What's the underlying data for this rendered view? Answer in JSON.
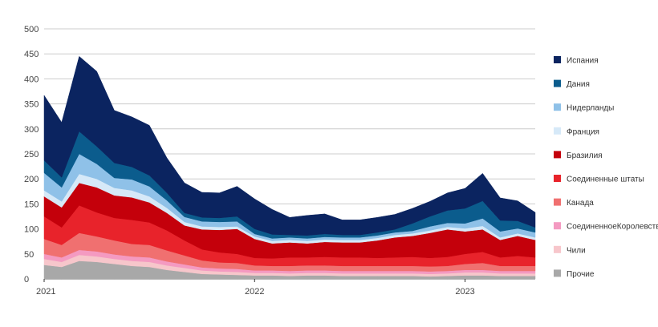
{
  "chart_data": {
    "type": "area",
    "stacked": true,
    "title": "",
    "xlabel": "",
    "ylabel": "",
    "ylim": [
      0,
      500
    ],
    "yticks": [
      "0",
      "50",
      "100",
      "150",
      "200",
      "250",
      "300",
      "350",
      "400",
      "450",
      "500"
    ],
    "xticks": [
      {
        "label": "2021",
        "index": 0
      },
      {
        "label": "2022",
        "index": 12
      },
      {
        "label": "2023",
        "index": 24
      }
    ],
    "grid": true,
    "legend_position": "right",
    "x": [
      "2021-01",
      "2021-02",
      "2021-03",
      "2021-04",
      "2021-05",
      "2021-06",
      "2021-07",
      "2021-08",
      "2021-09",
      "2021-10",
      "2021-11",
      "2021-12",
      "2022-01",
      "2022-02",
      "2022-03",
      "2022-04",
      "2022-05",
      "2022-06",
      "2022-07",
      "2022-08",
      "2022-09",
      "2022-10",
      "2022-11",
      "2022-12",
      "2023-01",
      "2023-02",
      "2023-03",
      "2023-04",
      "2023-05"
    ],
    "series": [
      {
        "name": "Прочие",
        "color": "#a8a8a8",
        "values": [
          28,
          24,
          36,
          34,
          30,
          26,
          24,
          18,
          14,
          10,
          9,
          8,
          7,
          7,
          6,
          7,
          7,
          6,
          6,
          6,
          6,
          6,
          5,
          6,
          7,
          7,
          6,
          6,
          6
        ]
      },
      {
        "name": "Чили",
        "color": "#f7c6cb",
        "values": [
          12,
          10,
          12,
          11,
          10,
          10,
          10,
          9,
          8,
          7,
          6,
          6,
          5,
          5,
          5,
          5,
          5,
          5,
          5,
          5,
          5,
          5,
          5,
          5,
          6,
          6,
          5,
          5,
          5
        ]
      },
      {
        "name": "СоединенноеКоролевство",
        "color": "#f49ac1",
        "values": [
          10,
          9,
          10,
          10,
          9,
          9,
          9,
          8,
          7,
          6,
          6,
          6,
          5,
          5,
          5,
          5,
          5,
          5,
          5,
          5,
          5,
          5,
          5,
          5,
          5,
          5,
          5,
          5,
          5
        ]
      },
      {
        "name": "Канада",
        "color": "#f07070",
        "values": [
          30,
          25,
          34,
          30,
          28,
          25,
          25,
          22,
          18,
          14,
          12,
          12,
          10,
          9,
          10,
          10,
          10,
          10,
          10,
          10,
          10,
          10,
          10,
          10,
          12,
          14,
          10,
          10,
          10
        ]
      },
      {
        "name": "Соединенные штаты",
        "color": "#e8232b",
        "values": [
          45,
          35,
          55,
          48,
          45,
          48,
          45,
          40,
          30,
          22,
          20,
          18,
          15,
          15,
          17,
          16,
          17,
          17,
          17,
          16,
          17,
          18,
          17,
          18,
          20,
          22,
          17,
          20,
          17
        ]
      },
      {
        "name": "Бразилия",
        "color": "#c4000b",
        "values": [
          40,
          40,
          45,
          50,
          45,
          45,
          40,
          35,
          30,
          40,
          45,
          50,
          38,
          30,
          30,
          28,
          30,
          30,
          30,
          35,
          40,
          42,
          50,
          55,
          45,
          45,
          35,
          40,
          35
        ]
      },
      {
        "name": "Франция",
        "color": "#d6e9f8",
        "values": [
          12,
          12,
          18,
          17,
          15,
          14,
          12,
          10,
          7,
          6,
          6,
          5,
          5,
          5,
          5,
          5,
          5,
          5,
          5,
          5,
          5,
          5,
          5,
          5,
          6,
          7,
          5,
          5,
          5
        ]
      },
      {
        "name": "Нидерланды",
        "color": "#8fc1e8",
        "values": [
          35,
          28,
          40,
          30,
          20,
          22,
          20,
          15,
          10,
          10,
          10,
          10,
          5,
          5,
          5,
          5,
          5,
          5,
          5,
          5,
          5,
          5,
          8,
          8,
          10,
          15,
          12,
          10,
          10
        ]
      },
      {
        "name": "Дания",
        "color": "#0b5c8d",
        "values": [
          25,
          20,
          45,
          35,
          30,
          25,
          22,
          15,
          8,
          8,
          8,
          10,
          10,
          8,
          5,
          6,
          6,
          5,
          5,
          6,
          6,
          15,
          20,
          25,
          30,
          35,
          22,
          15,
          10
        ]
      },
      {
        "name": "Испания",
        "color": "#0b2460",
        "values": [
          130,
          110,
          150,
          150,
          105,
          100,
          100,
          70,
          60,
          50,
          50,
          60,
          60,
          50,
          35,
          40,
          40,
          30,
          30,
          30,
          30,
          30,
          30,
          35,
          40,
          55,
          45,
          40,
          30
        ]
      }
    ]
  }
}
